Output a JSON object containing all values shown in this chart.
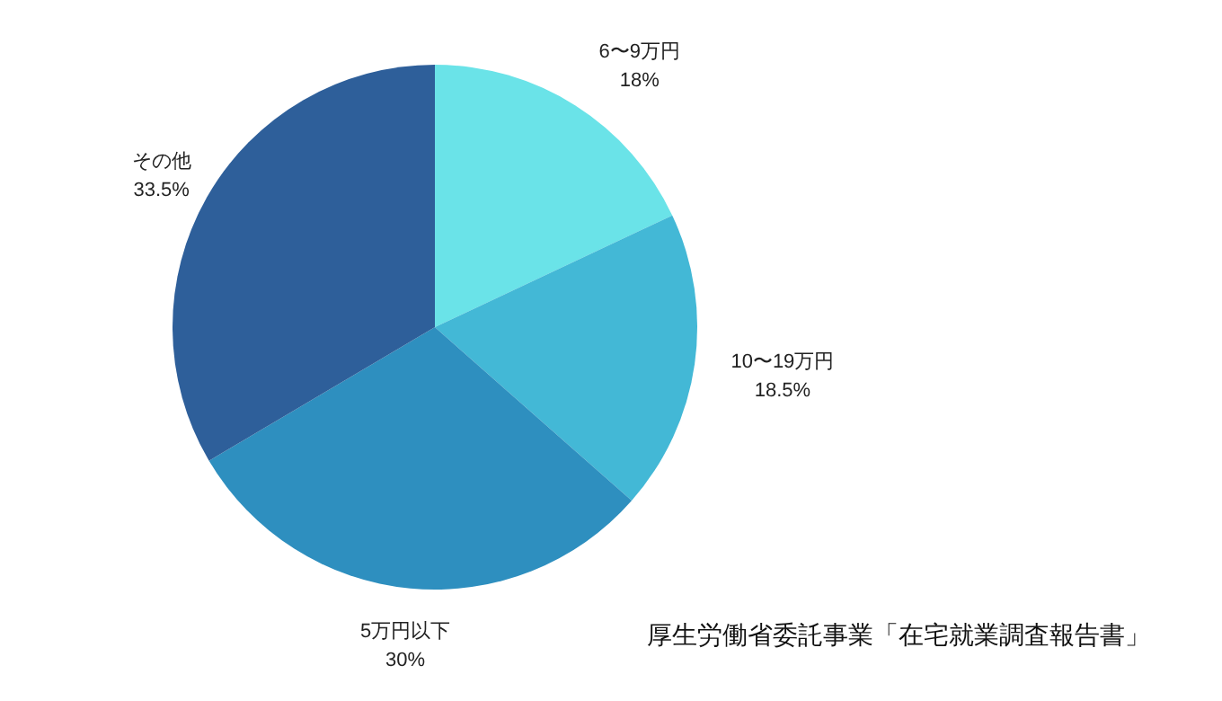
{
  "chart_data": {
    "type": "pie",
    "categories": [
      "6〜9万円",
      "10〜19万円",
      "5万円以下",
      "その他"
    ],
    "values": [
      18,
      18.5,
      30,
      33.5
    ],
    "value_labels": [
      "18%",
      "18.5%",
      "30%",
      "33.5%"
    ],
    "colors": [
      "#6ae3e8",
      "#43b8d6",
      "#2e8fbf",
      "#2e5f9a"
    ],
    "annotations": [
      "厚生労働省委託事業「在宅就業調査報告書」"
    ]
  }
}
